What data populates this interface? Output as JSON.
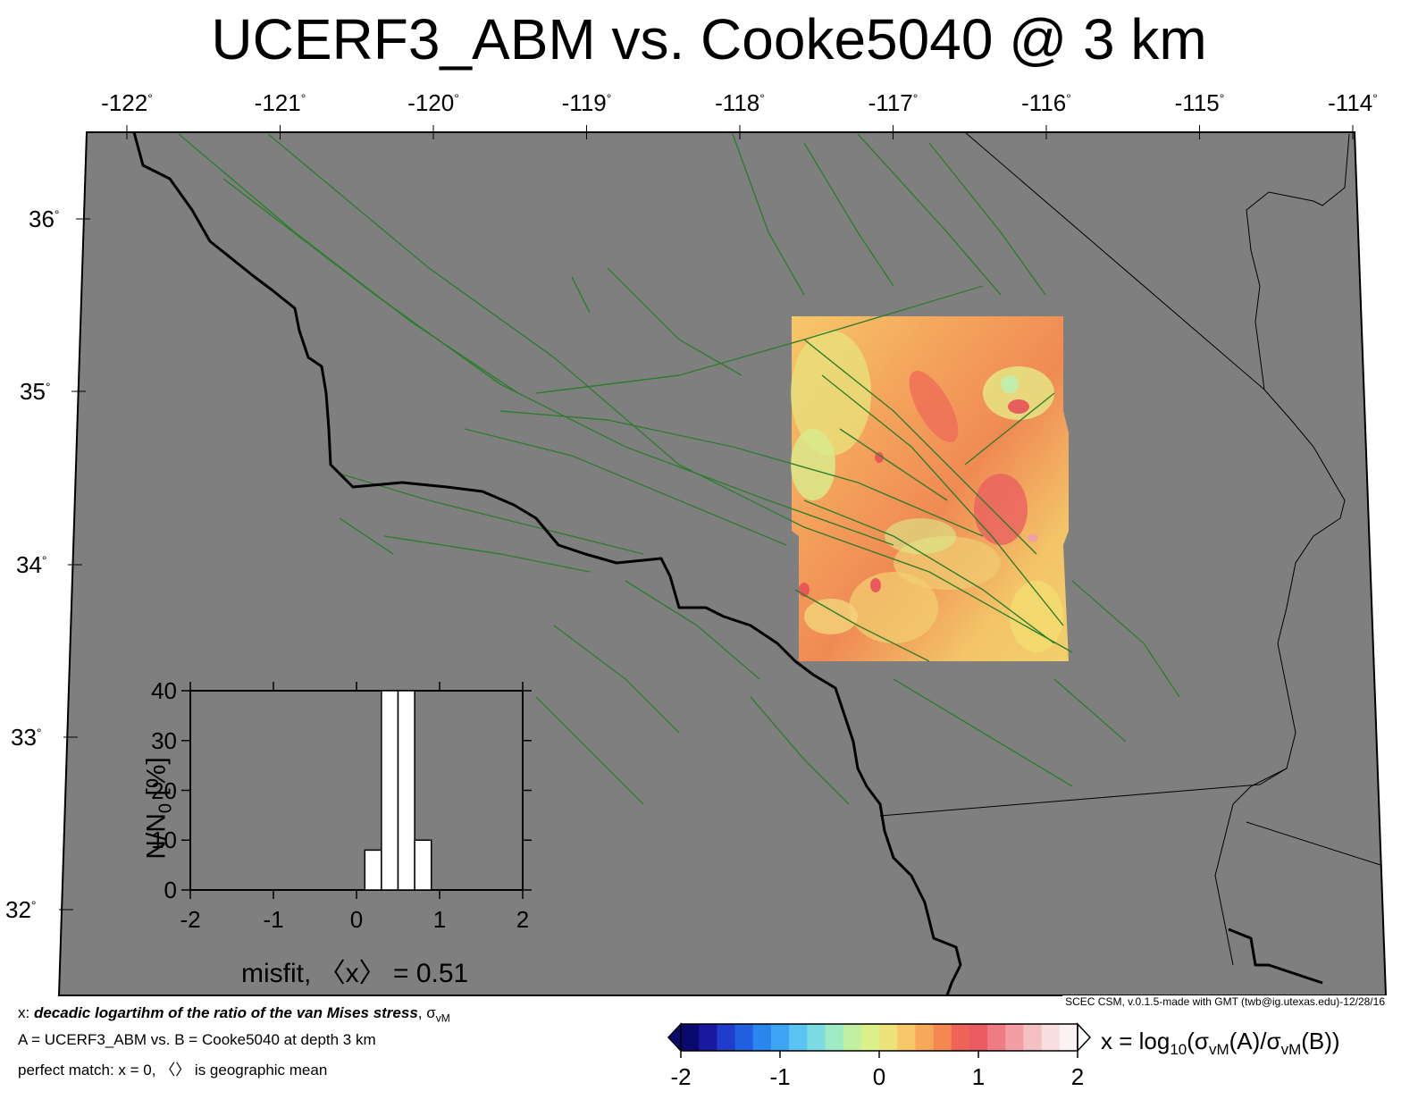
{
  "title": "UCERF3_ABM vs. Cooke5040 @ 3 km",
  "lon_ticks": [
    "-122",
    "-121",
    "-120",
    "-119",
    "-118",
    "-117",
    "-116",
    "-115",
    "-114"
  ],
  "lat_ticks": [
    "36",
    "35",
    "34",
    "33",
    "32"
  ],
  "degree_symbol": "°",
  "credit": "SCEC CSM, v.0.1.5-made with GMT (twb@ig.utexas.edu)-12/28/16",
  "caption": {
    "line1_prefix": "x: ",
    "line1_bold": "decadic logartihm of the ratio of the van Mises stress",
    "line1_suffix": ", σ",
    "line1_sub": "vM",
    "line2": "A = UCERF3_ABM vs.  B = Cooke5040 at depth 3 km",
    "line3": "perfect match: x = 0, 〈〉 is geographic mean"
  },
  "colorbar": {
    "ticks": [
      "-2",
      "-1",
      "0",
      "1",
      "2"
    ],
    "label_prefix": "x = log",
    "label_sub": "10",
    "label_mid1": "(σ",
    "label_sub2": "vM",
    "label_mid2": "(A)/σ",
    "label_sub3": "vM",
    "label_end": "(B))",
    "colors": [
      "#0a0a6e",
      "#1a1aa0",
      "#1f3ccc",
      "#2060e0",
      "#2b86ef",
      "#3ca6f5",
      "#5cc4f3",
      "#7ddbe3",
      "#9eeac4",
      "#c0f0a0",
      "#dcf08a",
      "#eee27a",
      "#f6c86a",
      "#f8a85a",
      "#f48850",
      "#ee6458",
      "#ec5a62",
      "#ef7b84",
      "#f29ea4",
      "#f5c0c2",
      "#f8dede",
      "#fcf2f2"
    ]
  },
  "histogram": {
    "y_label": "N/N",
    "y_label_sub": "0",
    "y_label_unit": " [%]",
    "x_label": "misfit, 〈x〉 = 0.51",
    "y_ticks": [
      "0",
      "10",
      "20",
      "30",
      "40"
    ],
    "x_ticks": [
      "-2",
      "-1",
      "0",
      "1",
      "2"
    ],
    "xlim": [
      -2,
      2
    ],
    "ylim": [
      0,
      40
    ],
    "bins": [
      {
        "x0": 0.1,
        "x1": 0.3,
        "value": 8
      },
      {
        "x0": 0.3,
        "x1": 0.5,
        "value": 40
      },
      {
        "x0": 0.5,
        "x1": 0.7,
        "value": 40
      },
      {
        "x0": 0.7,
        "x1": 0.9,
        "value": 10
      }
    ]
  },
  "map_colors": {
    "background": "#7f7f7f",
    "faults": "#2e7d2e",
    "coast": "#000000"
  }
}
